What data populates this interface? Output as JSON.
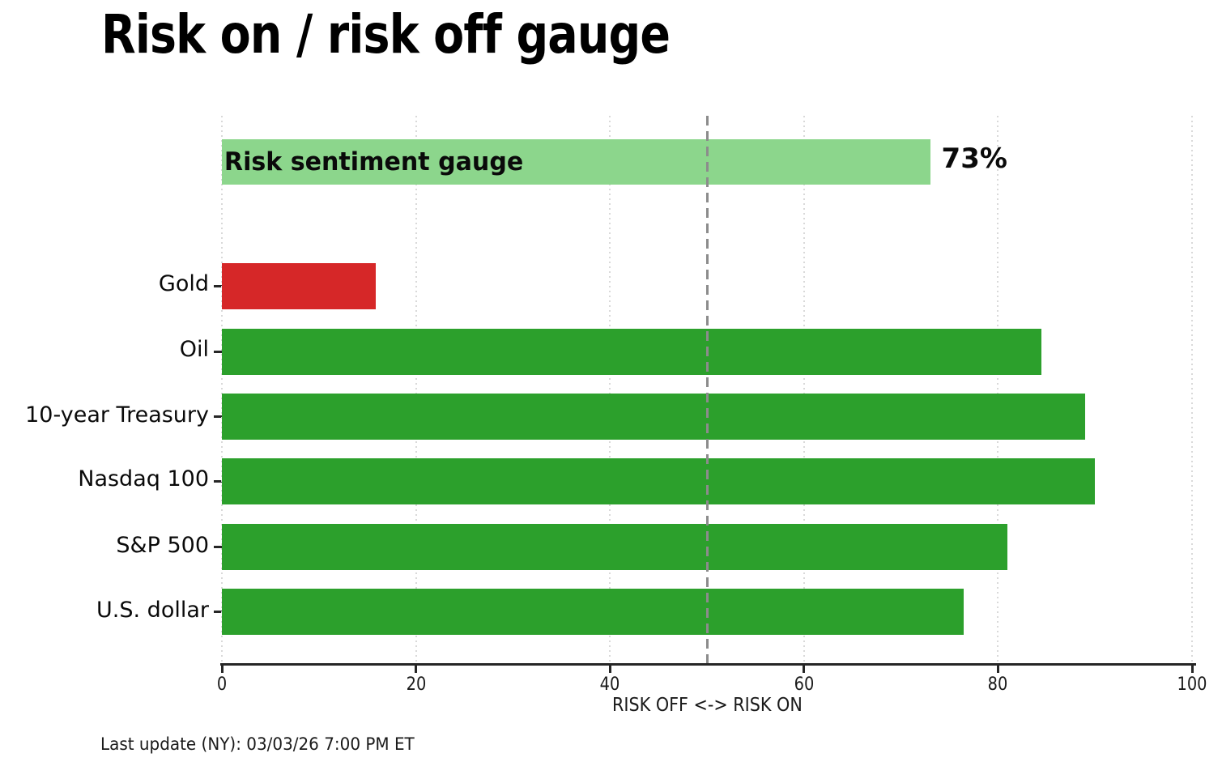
{
  "title": "Risk on / risk off gauge",
  "footer": "Last update (NY): 03/03/26 7:00 PM ET",
  "colors": {
    "risk_on_green": "#2ca02c",
    "risk_off_red": "#d62728",
    "gauge_light_green": "#8cd68c",
    "dashed_line_gray": "#8c8c8c",
    "gridline_gray": "#d9d9d9",
    "axis_dark": "#262626",
    "background": "#ffffff"
  },
  "chart_data": {
    "type": "bar",
    "orientation": "horizontal",
    "title": "Risk on / risk off gauge",
    "xlabel": "RISK OFF <-> RISK ON",
    "xlim": [
      0,
      100
    ],
    "xticks": [
      0,
      20,
      40,
      60,
      80,
      100
    ],
    "grid": "vertical-dotted",
    "legend": "none",
    "threshold_line_x": 50,
    "gauge": {
      "label": "Risk sentiment gauge",
      "value": 73,
      "value_label": "73%"
    },
    "categories": [
      "Gold",
      "Oil",
      "10-year Treasury",
      "Nasdaq 100",
      "S&P 500",
      "U.S. dollar"
    ],
    "values": [
      15.9,
      84.5,
      89,
      90,
      81,
      76.5
    ],
    "bar_colors_rule": "red if value < 50 else green"
  }
}
